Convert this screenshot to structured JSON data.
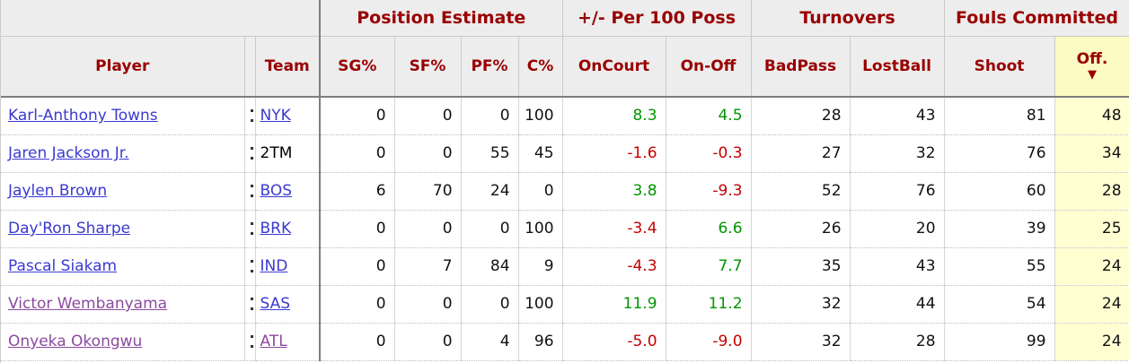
{
  "colors": {
    "header_text": "#990000",
    "header_bg": "#ededed",
    "dark_line": "#7e7e7e",
    "link": "#3a3ad0",
    "visited": "#8b4a9e",
    "positive": "#009400",
    "negative": "#c40000",
    "sorted_header_bg": "#fbfbc3",
    "sorted_cell_bg": "#ffffd2"
  },
  "table": {
    "group_headers": [
      {
        "label": "",
        "span": 3
      },
      {
        "label": "Position Estimate",
        "span": 4
      },
      {
        "label": "+/- Per 100 Poss",
        "span": 2
      },
      {
        "label": "Turnovers",
        "span": 2
      },
      {
        "label": "Fouls Committed",
        "span": 2
      }
    ],
    "columns": [
      {
        "label": "Player"
      },
      {
        "label": ""
      },
      {
        "label": "Team"
      },
      {
        "label": "SG%"
      },
      {
        "label": "SF%"
      },
      {
        "label": "PF%"
      },
      {
        "label": "C%"
      },
      {
        "label": "OnCourt"
      },
      {
        "label": "On-Off"
      },
      {
        "label": "BadPass"
      },
      {
        "label": "LostBall"
      },
      {
        "label": "Shoot"
      },
      {
        "label": "Off.",
        "sort_arrow": "▼",
        "sorted": true
      }
    ],
    "rows": [
      {
        "player": "Karl-Anthony Towns",
        "player_visited": false,
        "team": "NYK",
        "team_is_link": true,
        "team_visited": false,
        "sg_pct": "0",
        "sf_pct": "0",
        "pf_pct": "0",
        "c_pct": "100",
        "on_court": "8.3",
        "on_off": "4.5",
        "bad_pass": "28",
        "lost_ball": "43",
        "shoot": "81",
        "off": "48"
      },
      {
        "player": "Jaren Jackson Jr.",
        "player_visited": false,
        "team": "2TM",
        "team_is_link": false,
        "team_visited": false,
        "sg_pct": "0",
        "sf_pct": "0",
        "pf_pct": "55",
        "c_pct": "45",
        "on_court": "-1.6",
        "on_off": "-0.3",
        "bad_pass": "27",
        "lost_ball": "32",
        "shoot": "76",
        "off": "34"
      },
      {
        "player": "Jaylen Brown",
        "player_visited": false,
        "team": "BOS",
        "team_is_link": true,
        "team_visited": false,
        "sg_pct": "6",
        "sf_pct": "70",
        "pf_pct": "24",
        "c_pct": "0",
        "on_court": "3.8",
        "on_off": "-9.3",
        "bad_pass": "52",
        "lost_ball": "76",
        "shoot": "60",
        "off": "28"
      },
      {
        "player": "Day'Ron Sharpe",
        "player_visited": false,
        "team": "BRK",
        "team_is_link": true,
        "team_visited": false,
        "sg_pct": "0",
        "sf_pct": "0",
        "pf_pct": "0",
        "c_pct": "100",
        "on_court": "-3.4",
        "on_off": "6.6",
        "bad_pass": "26",
        "lost_ball": "20",
        "shoot": "39",
        "off": "25"
      },
      {
        "player": "Pascal Siakam",
        "player_visited": false,
        "team": "IND",
        "team_is_link": true,
        "team_visited": false,
        "sg_pct": "0",
        "sf_pct": "7",
        "pf_pct": "84",
        "c_pct": "9",
        "on_court": "-4.3",
        "on_off": "7.7",
        "bad_pass": "35",
        "lost_ball": "43",
        "shoot": "55",
        "off": "24"
      },
      {
        "player": "Victor Wembanyama",
        "player_visited": true,
        "team": "SAS",
        "team_is_link": true,
        "team_visited": false,
        "sg_pct": "0",
        "sf_pct": "0",
        "pf_pct": "0",
        "c_pct": "100",
        "on_court": "11.9",
        "on_off": "11.2",
        "bad_pass": "32",
        "lost_ball": "44",
        "shoot": "54",
        "off": "24"
      },
      {
        "player": "Onyeka Okongwu",
        "player_visited": true,
        "team": "ATL",
        "team_is_link": true,
        "team_visited": true,
        "sg_pct": "0",
        "sf_pct": "0",
        "pf_pct": "4",
        "c_pct": "96",
        "on_court": "-5.0",
        "on_off": "-9.0",
        "bad_pass": "32",
        "lost_ball": "28",
        "shoot": "99",
        "off": "24"
      }
    ]
  }
}
